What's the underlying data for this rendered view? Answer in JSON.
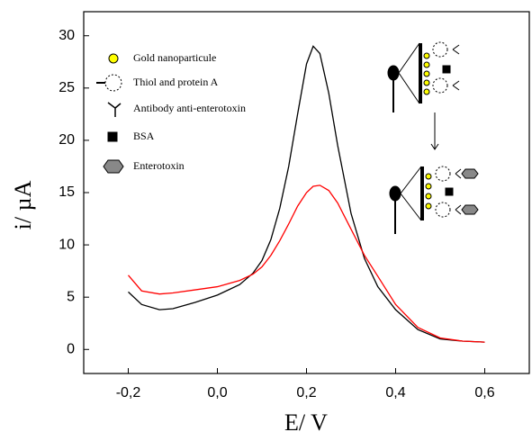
{
  "chart_data": {
    "type": "line",
    "xlabel": "E/ V",
    "ylabel": "i/ µA",
    "x": [
      -0.2,
      -0.17,
      -0.13,
      -0.1,
      -0.05,
      0,
      0.05,
      0.08,
      0.1,
      0.12,
      0.14,
      0.16,
      0.18,
      0.2,
      0.215,
      0.23,
      0.25,
      0.27,
      0.3,
      0.33,
      0.36,
      0.4,
      0.45,
      0.5,
      0.55,
      0.6
    ],
    "series": [
      {
        "color": "#000000",
        "values": [
          5.5,
          4.3,
          3.8,
          3.9,
          4.5,
          5.2,
          6.2,
          7.3,
          8.5,
          10.5,
          13.5,
          17.5,
          22.5,
          27.3,
          29,
          28.3,
          24.5,
          19.5,
          13,
          8.7,
          6,
          3.8,
          1.9,
          1.0,
          0.8,
          0.7
        ]
      },
      {
        "color": "#ff0000",
        "values": [
          7.1,
          5.6,
          5.3,
          5.4,
          5.7,
          6.0,
          6.6,
          7.2,
          7.9,
          9.0,
          10.4,
          12.0,
          13.7,
          15.0,
          15.6,
          15.7,
          15.2,
          14,
          11.5,
          9,
          7,
          4.3,
          2.1,
          1.1,
          0.8,
          0.7
        ]
      }
    ],
    "xlim": [
      -0.3,
      0.7
    ],
    "ylim": [
      -2.3,
      32.3
    ],
    "xticks": [
      {
        "value": -0.2,
        "label": "-0,2"
      },
      {
        "value": 0,
        "label": "0,0"
      },
      {
        "value": 0.2,
        "label": "0,2"
      },
      {
        "value": 0.4,
        "label": "0,4"
      },
      {
        "value": 0.6,
        "label": "0,6"
      }
    ],
    "yticks": [
      0,
      5,
      10,
      15,
      20,
      25,
      30
    ],
    "legend_items": [
      "Gold nanoparticule",
      "Thiol and protein A",
      "Antibody anti-enterotoxin",
      "BSA",
      "Enterotoxin"
    ]
  }
}
